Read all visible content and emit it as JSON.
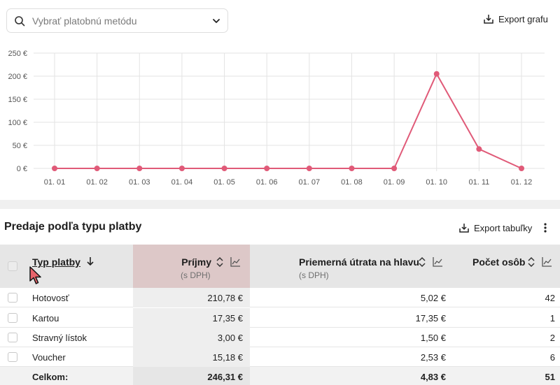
{
  "filter": {
    "placeholder": "Vybrať platobnú metódu",
    "icon": "search-icon"
  },
  "chart_export_label": "Export grafu",
  "chart_data": {
    "type": "line",
    "categories": [
      "01. 01",
      "01. 02",
      "01. 03",
      "01. 04",
      "01. 05",
      "01. 06",
      "01. 07",
      "01. 08",
      "01. 09",
      "01. 10",
      "01. 11",
      "01. 12"
    ],
    "series": [
      {
        "values": [
          0,
          0,
          0,
          0,
          0,
          0,
          0,
          0,
          0,
          205,
          42,
          0
        ],
        "color": "#e05a78"
      }
    ],
    "y_ticks": [
      "0 €",
      "50 €",
      "100 €",
      "150 €",
      "200 €",
      "250 €"
    ],
    "ylim": [
      0,
      250
    ],
    "grid": true
  },
  "table": {
    "title": "Predaje podľa typu platby",
    "export_label": "Export tabuľky",
    "headers": {
      "type": "Typ platby",
      "revenue": "Príjmy",
      "revenue_sub": "(s DPH)",
      "avg": "Priemerná útrata na hlavu",
      "avg_sub": "(s DPH)",
      "count": "Počet osôb"
    },
    "rows": [
      {
        "type": "Hotovosť",
        "revenue": "210,78 €",
        "avg": "5,02 €",
        "count": "42"
      },
      {
        "type": "Kartou",
        "revenue": "17,35 €",
        "avg": "17,35 €",
        "count": "1"
      },
      {
        "type": "Stravný lístok",
        "revenue": "3,00 €",
        "avg": "1,50 €",
        "count": "2"
      },
      {
        "type": "Voucher",
        "revenue": "15,18 €",
        "avg": "2,53 €",
        "count": "6"
      }
    ],
    "total": {
      "label": "Celkom:",
      "revenue": "246,31 €",
      "avg": "4,83 €",
      "count": "51"
    }
  }
}
